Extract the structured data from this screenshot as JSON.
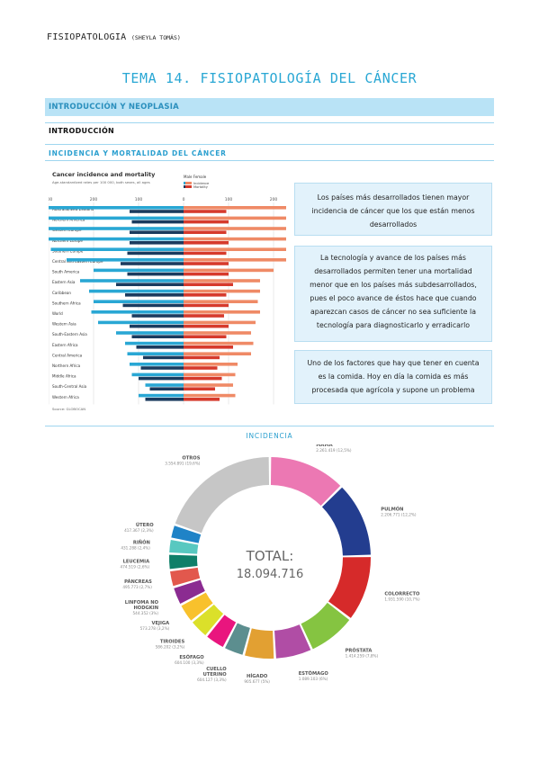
{
  "header": {
    "subject": "FISIOPATOLOGIA",
    "author": "(SHEYLA TOMÁS)"
  },
  "title": "TEMA 14. FISIOPATOLOGÍA DEL CÁNCER",
  "sections": {
    "band": "INTRODUCCIÓN Y NEOPLASIA",
    "subheading": "INTRODUCCIÓN",
    "incidence_mortality": "INCIDENCIA Y MORTALIDAD DEL CÁNCER",
    "incidence": "INCIDENCIA"
  },
  "notes": [
    "Los países más desarrollados tienen mayor incidencia de cáncer que los que están menos desarrollados",
    "La tecnología y avance de los países más desarrollados permiten tener una mortalidad menor que en los países más subdesarrollados, pues el poco avance de éstos hace que cuando aparezcan casos de cáncer no sea suficiente la tecnología para diagnosticarlo y erradicarlo",
    "Uno de los factores que hay que tener en cuenta es la comida. Hoy en día la comida es más procesada que agrícola y supone un problema"
  ],
  "colors": {
    "accent": "#29a7d4",
    "band": "#b9e3f6",
    "note_bg": "#e2f2fb"
  },
  "chart_data": [
    {
      "type": "bar",
      "title": "Cancer incidence and mortality",
      "subtitle": "Age-standardized rates per 100 000, both sexes, all ages",
      "source": "Source: GLOBOCAN",
      "legend_title": "Male  Female",
      "categories": [
        "Australia/New Zealand",
        "Northern America",
        "Western Europe",
        "Northern Europe",
        "Southern Europe",
        "Central and Eastern Europe",
        "South America",
        "Eastern Asia",
        "Caribbean",
        "Southern Africa",
        "World",
        "Western Asia",
        "South-Eastern Asia",
        "Eastern Africa",
        "Central America",
        "Northern Africa",
        "Middle Africa",
        "South-Central Asia",
        "Western Africa"
      ],
      "x_ticks": [
        -300,
        -200,
        -100,
        0,
        100,
        200,
        300
      ],
      "x_tick_labels": [
        "300",
        "200",
        "100",
        "0",
        "100",
        "200",
        "300"
      ],
      "series": [
        {
          "name": "Incidence",
          "side": "left",
          "color": "#29a7d4",
          "values": [
            370,
            345,
            330,
            300,
            295,
            260,
            200,
            230,
            210,
            200,
            205,
            190,
            150,
            130,
            125,
            120,
            115,
            85,
            100
          ]
        },
        {
          "name": "Mortality",
          "side": "left",
          "color": "#1b3b5e",
          "values": [
            120,
            115,
            120,
            120,
            125,
            140,
            125,
            150,
            130,
            135,
            115,
            120,
            115,
            105,
            90,
            95,
            100,
            75,
            85
          ]
        },
        {
          "name": "Incidence",
          "side": "right",
          "color": "#ef8a66",
          "values": [
            280,
            305,
            265,
            270,
            255,
            230,
            200,
            170,
            170,
            165,
            170,
            160,
            150,
            155,
            150,
            120,
            115,
            110,
            115
          ]
        },
        {
          "name": "Mortality",
          "side": "right",
          "color": "#d63a2c",
          "values": [
            95,
            100,
            95,
            100,
            95,
            100,
            100,
            110,
            95,
            100,
            90,
            100,
            95,
            110,
            80,
            75,
            85,
            70,
            80
          ]
        }
      ]
    },
    {
      "type": "pie",
      "title": "INCIDENCIA",
      "center_label": "TOTAL:",
      "center_value": "18.094.716",
      "slices": [
        {
          "label": "MAMA",
          "value": 2261419,
          "display": "2.261.419 (12,5%)",
          "color": "#ec78b3"
        },
        {
          "label": "PULMÓN",
          "value": 2206771,
          "display": "2.206.771 (12,2%)",
          "color": "#233d8f"
        },
        {
          "label": "COLORRECTO",
          "value": 1931590,
          "display": "1.931.590 (10,7%)",
          "color": "#d62a2a"
        },
        {
          "label": "PRÓSTATA",
          "value": 1414259,
          "display": "1.414.259 (7,8%)",
          "color": "#85c441"
        },
        {
          "label": "ESTÓMAGO",
          "value": 1089103,
          "display": "1.089.103 (6%)",
          "color": "#b04da5"
        },
        {
          "label": "HÍGADO",
          "value": 905677,
          "display": "905.677 (5%)",
          "color": "#e2a032"
        },
        {
          "label": "CUELLO UTERINO",
          "value": 604127,
          "display": "604.127 (3,3%)",
          "color": "#5c8e8f"
        },
        {
          "label": "ESÓFAGO",
          "value": 604100,
          "display": "604.100 (3,3%)",
          "color": "#e9157e"
        },
        {
          "label": "TIROIDES",
          "value": 586202,
          "display": "586.202 (3,2%)",
          "color": "#dbe02a"
        },
        {
          "label": "VEJIGA",
          "value": 573278,
          "display": "573.278 (3,2%)",
          "color": "#f8c12c"
        },
        {
          "label": "LINFOMA NO HODGKIN",
          "value": 544352,
          "display": "544.352 (3%)",
          "color": "#8b2b91"
        },
        {
          "label": "PÁNCREAS",
          "value": 495773,
          "display": "495.773 (2,7%)",
          "color": "#e2584d"
        },
        {
          "label": "LEUCEMIA",
          "value": 474519,
          "display": "474.519 (2,6%)",
          "color": "#0f7f69"
        },
        {
          "label": "RIÑÓN",
          "value": 431288,
          "display": "431.288 (2,4%)",
          "color": "#58c8c0"
        },
        {
          "label": "ÚTERO",
          "value": 417367,
          "display": "417.367 (2,3%)",
          "color": "#1f83c7"
        },
        {
          "label": "OTROS",
          "value": 3554891,
          "display": "3.554.891 (19,6%)",
          "color": "#c6c6c6"
        }
      ]
    }
  ]
}
